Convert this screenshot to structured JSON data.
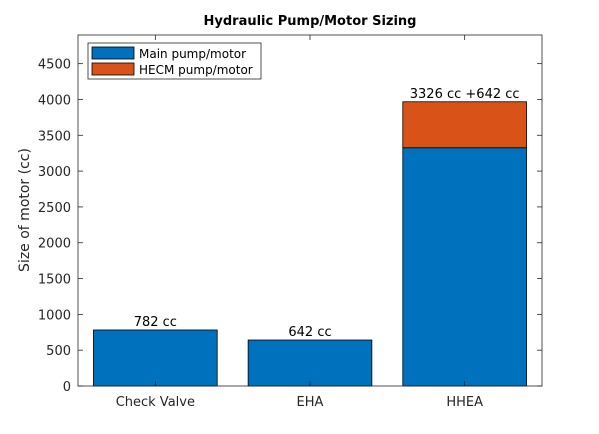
{
  "chart_data": {
    "type": "bar",
    "stacked": true,
    "title": "Hydraulic Pump/Motor Sizing",
    "xlabel": "",
    "ylabel": "Size of motor (cc)",
    "categories": [
      "Check Valve",
      "EHA",
      "HHEA"
    ],
    "series": [
      {
        "name": "Main pump/motor",
        "values": [
          782,
          642,
          3326
        ],
        "color": "#0072BD"
      },
      {
        "name": "HECM pump/motor",
        "values": [
          0,
          0,
          642
        ],
        "color": "#D95319"
      }
    ],
    "bar_labels": [
      "782 cc",
      "642 cc",
      "3326 cc +642 cc"
    ],
    "ylim": [
      0,
      4900
    ],
    "yticks": [
      0,
      500,
      1000,
      1500,
      2000,
      2500,
      3000,
      3500,
      4000,
      4500
    ],
    "grid": false,
    "legend_position": "top-left"
  }
}
